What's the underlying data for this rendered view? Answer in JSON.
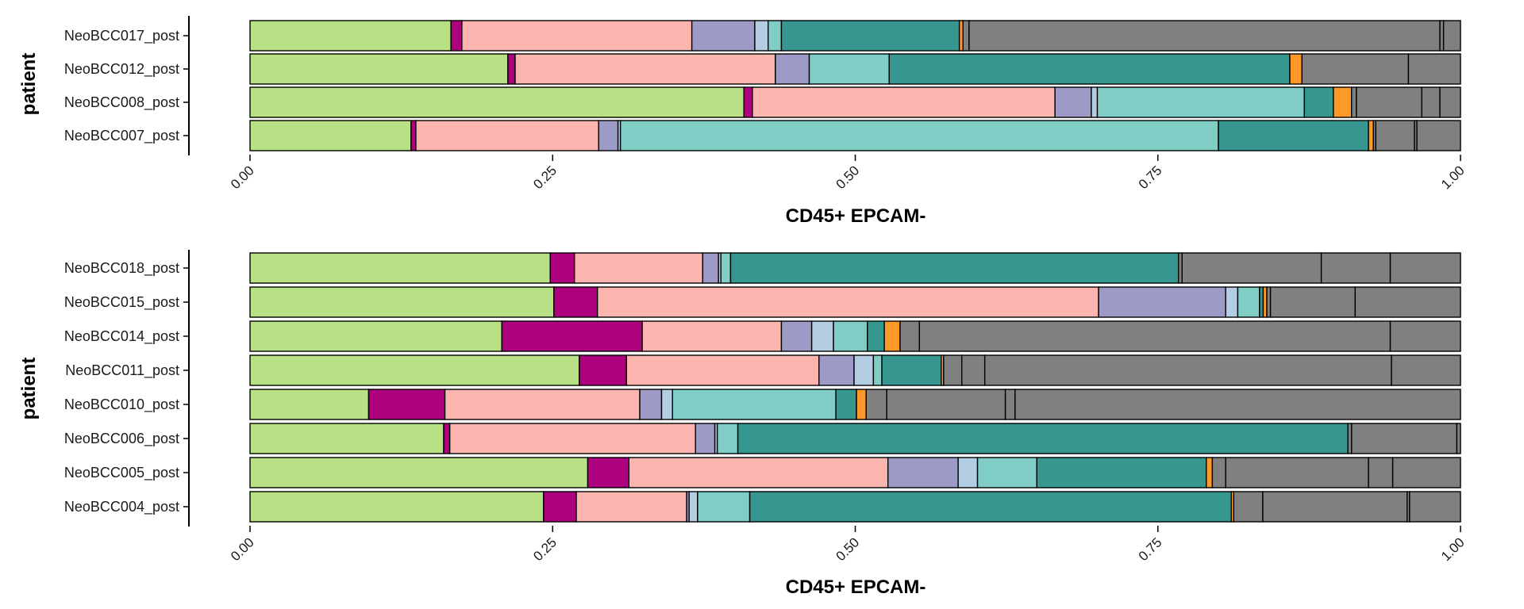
{
  "palette": [
    "#b8e186",
    "#ae017e",
    "#fbb4ae",
    "#9e9ac8",
    "#b3cde3",
    "#7fcdc4",
    "#35978f",
    "#fe9929",
    "#808080",
    "#808080",
    "#808080",
    "#808080"
  ],
  "chart_data": [
    {
      "type": "bar",
      "orientation": "horizontal",
      "stacked": true,
      "xlabel": "CD45+ EPCAM-",
      "ylabel": "patient",
      "xlim": [
        0,
        1
      ],
      "xticks": [
        "0.00",
        "0.25",
        "0.50",
        "0.75",
        "1.00"
      ],
      "categories": [
        "NeoBCC017_post",
        "NeoBCC012_post",
        "NeoBCC008_post",
        "NeoBCC007_post"
      ],
      "rows": [
        [
          0.166,
          0.009,
          0.19,
          0.052,
          0.011,
          0.011,
          0.147,
          0.003,
          0.005,
          0.389,
          0.003,
          0.014
        ],
        [
          0.213,
          0.006,
          0.215,
          0.028,
          0.0,
          0.066,
          0.331,
          0.01,
          0.0,
          0.088,
          0.0,
          0.043
        ],
        [
          0.408,
          0.007,
          0.25,
          0.03,
          0.005,
          0.171,
          0.024,
          0.015,
          0.004,
          0.054,
          0.015,
          0.017
        ],
        [
          0.133,
          0.004,
          0.151,
          0.016,
          0.002,
          0.494,
          0.124,
          0.004,
          0.002,
          0.032,
          0.002,
          0.036
        ]
      ]
    },
    {
      "type": "bar",
      "orientation": "horizontal",
      "stacked": true,
      "xlabel": "CD45+ EPCAM-",
      "ylabel": "patient",
      "xlim": [
        0,
        1
      ],
      "xticks": [
        "0.00",
        "0.25",
        "0.50",
        "0.75",
        "1.00"
      ],
      "categories": [
        "NeoBCC018_post",
        "NeoBCC015_post",
        "NeoBCC014_post",
        "NeoBCC011_post",
        "NeoBCC010_post",
        "NeoBCC006_post",
        "NeoBCC005_post",
        "NeoBCC004_post"
      ],
      "rows": [
        [
          0.248,
          0.02,
          0.106,
          0.013,
          0.002,
          0.008,
          0.37,
          0.0,
          0.003,
          0.115,
          0.057,
          0.058
        ],
        [
          0.251,
          0.036,
          0.414,
          0.105,
          0.01,
          0.018,
          0.003,
          0.003,
          0.003,
          0.07,
          0.0,
          0.087
        ],
        [
          0.208,
          0.116,
          0.115,
          0.025,
          0.018,
          0.028,
          0.014,
          0.013,
          0.016,
          0.389,
          0.0,
          0.058
        ],
        [
          0.272,
          0.039,
          0.159,
          0.029,
          0.016,
          0.007,
          0.049,
          0.002,
          0.015,
          0.019,
          0.336,
          0.057
        ],
        [
          0.098,
          0.063,
          0.161,
          0.018,
          0.009,
          0.135,
          0.017,
          0.008,
          0.017,
          0.098,
          0.008,
          0.368
        ],
        [
          0.16,
          0.005,
          0.203,
          0.016,
          0.002,
          0.017,
          0.504,
          0.0,
          0.003,
          0.087,
          0.0,
          0.003
        ],
        [
          0.279,
          0.034,
          0.214,
          0.058,
          0.016,
          0.049,
          0.14,
          0.005,
          0.011,
          0.118,
          0.02,
          0.056
        ],
        [
          0.242,
          0.027,
          0.091,
          0.002,
          0.007,
          0.043,
          0.397,
          0.002,
          0.024,
          0.119,
          0.002,
          0.042
        ]
      ]
    }
  ]
}
